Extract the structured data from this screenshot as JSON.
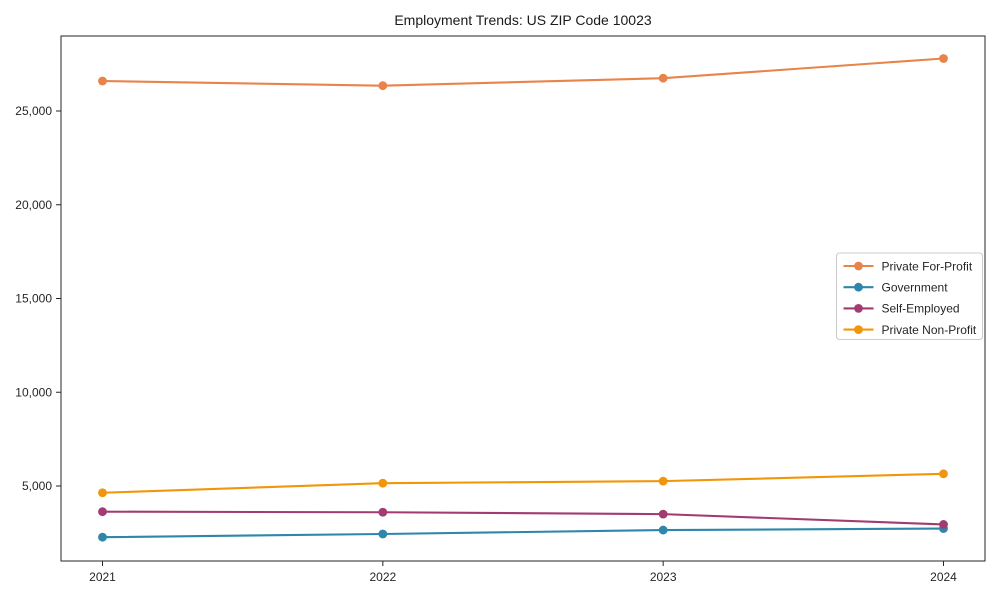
{
  "chart_data": {
    "type": "line",
    "title": "Employment Trends: US ZIP Code 10023",
    "xlabel": "",
    "ylabel": "",
    "categories": [
      "2021",
      "2022",
      "2023",
      "2024"
    ],
    "series": [
      {
        "name": "Private For-Profit",
        "color": "#E8834A",
        "values": [
          26600,
          26350,
          26750,
          27800
        ]
      },
      {
        "name": "Government",
        "color": "#2E86AB",
        "values": [
          2270,
          2440,
          2650,
          2730
        ]
      },
      {
        "name": "Self-Employed",
        "color": "#A23B72",
        "values": [
          3630,
          3600,
          3500,
          2950
        ]
      },
      {
        "name": "Private Non-Profit",
        "color": "#F1960A",
        "values": [
          4640,
          5150,
          5260,
          5650
        ]
      }
    ],
    "ylim": [
      1000,
      29000
    ],
    "yticks": [
      5000,
      10000,
      15000,
      20000,
      25000
    ],
    "ytick_labels": [
      "5,000",
      "10,000",
      "15,000",
      "20,000",
      "25,000"
    ],
    "legend_position": "center-right",
    "grid": false,
    "marker": "circle",
    "axis_color": "#262626",
    "legend_border_color": "#cccccc",
    "background_color": "#ffffff"
  }
}
